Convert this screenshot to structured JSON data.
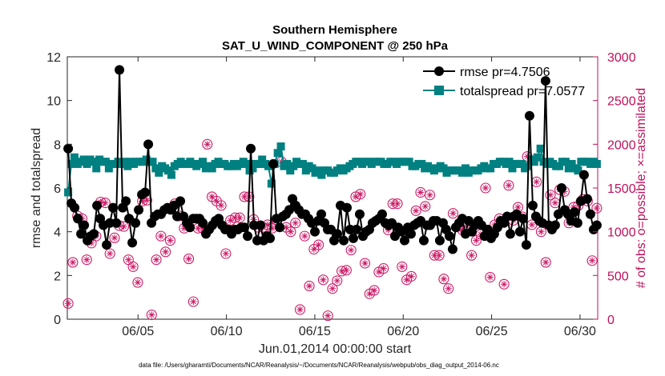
{
  "chart_data": {
    "type": "line",
    "title": [
      "Southern Hemisphere",
      "SAT_U_WIND_COMPONENT @ 250 hPa"
    ],
    "xlabel": "Jun.01,2014 00:00:00 start",
    "ylabel": "rmse and totalspread",
    "ylabel_right": "# of obs: o=possible; ×=assimilated",
    "footnote": "data file: /Users/gharamti/Documents/NCAR/Reanalysis/~/Documents/NCAR/Reanalysis/webpub/obs_diag_output_2014-06.nc",
    "xlim": [
      1,
      31
    ],
    "ylim": [
      0,
      12
    ],
    "ylim_right": [
      0,
      3000
    ],
    "x_ticks": [
      5,
      10,
      15,
      20,
      25,
      30
    ],
    "x_tick_labels": [
      "06/05",
      "06/10",
      "06/15",
      "06/20",
      "06/25",
      "06/30"
    ],
    "y_ticks": [
      0,
      2,
      4,
      6,
      8,
      10,
      12
    ],
    "y_tick_labels": [
      "0",
      "2",
      "4",
      "6",
      "8",
      "10",
      "12"
    ],
    "y_ticks_right": [
      0,
      500,
      1000,
      1500,
      2000,
      2500,
      3000
    ],
    "y_tick_labels_right": [
      "0",
      "500",
      "1000",
      "1500",
      "2000",
      "2500",
      "3000"
    ],
    "legend_placement": "top-right",
    "colors": {
      "rmse": "#000000",
      "spread": "#008080",
      "obs": "#cc1a66",
      "axis_right": "#c0105a"
    },
    "series": [
      {
        "name": "rmse pr=4.7506",
        "values": [
          7.8,
          5.3,
          5.1,
          4.6,
          3.9,
          4.3,
          3.6,
          3.8,
          3.9,
          5.2,
          4.6,
          4.3,
          3.4,
          4.4,
          5.1,
          4.4,
          11.4,
          5.1,
          5.4,
          4.6,
          3.5,
          4.4,
          5.0,
          5.7,
          5.8,
          8.0,
          4.4,
          4.7,
          4.8,
          4.8,
          5.0,
          5.1,
          5.0,
          5.2,
          4.7,
          5.4,
          4.7,
          4.4,
          4.2,
          4.6,
          4.6,
          4.6,
          4.4,
          3.9,
          4.1,
          4.3,
          4.5,
          4.6,
          4.3,
          4.1,
          4.1,
          3.9,
          4.1,
          4.1,
          4.2,
          4.2,
          3.8,
          7.8,
          4.3,
          3.6,
          4.3,
          3.6,
          3.8,
          3.7,
          7.1,
          4.6,
          4.2,
          4.7,
          4.8,
          5.0,
          5.5,
          5.2,
          5.0,
          4.8,
          4.8,
          4.6,
          4.4,
          4.0,
          4.5,
          4.8,
          4.4,
          4.1,
          4.1,
          3.6,
          3.9,
          5.2,
          3.6,
          5.1,
          4.1,
          3.7,
          4.1,
          4.8,
          3.8,
          4.0,
          4.1,
          4.4,
          4.5,
          4.6,
          4.8,
          4.4,
          4.3,
          4.4,
          3.8,
          4.2,
          4.0,
          3.6,
          4.2,
          3.9,
          4.3,
          4.4,
          4.5,
          3.6,
          4.3,
          4.3,
          4.5,
          4.5,
          3.6,
          4.4,
          4.1,
          3.8,
          3.2,
          4.2,
          4.4,
          4.6,
          3.9,
          4.5,
          4.0,
          4.3,
          4.5,
          4.3,
          3.8,
          4.1,
          3.7,
          3.9,
          4.2,
          4.5,
          4.4,
          4.7,
          3.9,
          4.7,
          4.8,
          4.0,
          4.6,
          3.4,
          9.3,
          5.2,
          4.7,
          4.5,
          4.4,
          10.9,
          4.3,
          4.1,
          4.3,
          4.8,
          6.0,
          5.0,
          4.8,
          4.5,
          4.9,
          4.4,
          5.4,
          6.6,
          5.5,
          4.8,
          4.1,
          4.3
        ],
        "style": "filled circle markers, black line"
      },
      {
        "name": "totalspread pr=7.0577",
        "values": [
          5.8,
          7.1,
          7.4,
          7.1,
          7.2,
          7.3,
          7.1,
          7.3,
          7.2,
          6.9,
          7.3,
          7.2,
          7.2,
          6.9,
          7.1,
          7.1,
          7.2,
          7.1,
          7.2,
          7.0,
          7.2,
          7.1,
          7.2,
          7.2,
          7.2,
          7.3,
          7.2,
          7.2,
          6.9,
          6.7,
          7.0,
          6.9,
          6.8,
          6.6,
          7.0,
          7.1,
          7.2,
          7.1,
          7.1,
          7.2,
          7.1,
          7.0,
          7.1,
          7.2,
          6.9,
          7.0,
          6.9,
          7.1,
          7.2,
          7.1,
          7.1,
          7.0,
          7.0,
          7.1,
          7.0,
          7.1,
          7.2,
          7.1,
          6.8,
          6.9,
          7.1,
          7.1,
          7.3,
          7.1,
          7.0,
          6.2,
          7.1,
          7.6,
          7.9,
          7.0,
          7.1,
          6.8,
          7.0,
          7.2,
          7.1,
          7.1,
          6.8,
          7.0,
          6.9,
          6.7,
          6.8,
          6.6,
          6.8,
          6.8,
          6.7,
          6.7,
          6.8,
          6.9,
          6.8,
          6.9,
          7.0,
          7.1,
          7.2,
          7.2,
          7.1,
          7.2,
          7.2,
          7.1,
          7.2,
          7.2,
          7.2,
          7.1,
          7.1,
          7.2,
          7.2,
          7.1,
          7.2,
          7.2,
          7.2,
          7.2,
          7.0,
          7.0,
          7.1,
          7.1,
          6.9,
          7.0,
          6.9,
          6.8,
          6.9,
          7.0,
          6.9,
          6.7,
          6.8,
          6.8,
          6.8,
          6.8,
          6.7,
          6.9,
          6.7,
          6.8,
          6.8,
          6.8,
          6.9,
          7.0,
          6.9,
          6.9,
          7.1,
          7.1,
          7.2,
          7.2,
          7.1,
          7.2,
          6.9,
          7.1,
          7.1,
          7.1,
          6.9,
          7.0,
          7.3,
          7.2,
          7.4,
          7.8,
          7.2,
          7.1,
          7.2,
          7.1,
          7.0,
          7.0,
          7.2,
          7.2,
          6.9,
          7.1,
          6.9,
          6.8,
          7.2,
          7.2,
          7.2,
          7.1,
          7.2,
          7.1
        ],
        "style": "filled square markers, teal line"
      },
      {
        "name": "# of obs (right axis)",
        "values": [
          180,
          650,
          1180,
          1150,
          680,
          870,
          950,
          1340,
          1330,
          750,
          930,
          1070,
          1060,
          680,
          600,
          420,
          1350,
          1360,
          50,
          680,
          950,
          770,
          900,
          1320,
          1180,
          1040,
          690,
          200,
          1040,
          1040,
          2000,
          1400,
          1350,
          1300,
          750,
          1130,
          1160,
          1160,
          1400,
          1400,
          1140,
          1050,
          1050,
          1080,
          1040,
          1130,
          1800,
          1050,
          1000,
          1100,
          110,
          950,
          380,
          800,
          850,
          450,
          40,
          350,
          440,
          550,
          560,
          790,
          1400,
          1430,
          640,
          290,
          330,
          540,
          580,
          1020,
          1320,
          1320,
          600,
          450,
          490,
          1240,
          1450,
          1290,
          1420,
          730,
          730,
          460,
          350,
          1210,
          1060,
          1020,
          1070,
          730,
          900,
          970,
          1500,
          480,
          1080,
          1150,
          400,
          1530,
          1130,
          1280,
          1170,
          1860,
          1080,
          1570,
          1000,
          650,
          1420,
          1330,
          1480,
          1460,
          1100,
          1280,
          1300,
          1370,
          1350,
          670,
          1270
        ],
        "style": "open circle with star (possible and assimilated overlaid)"
      }
    ]
  }
}
